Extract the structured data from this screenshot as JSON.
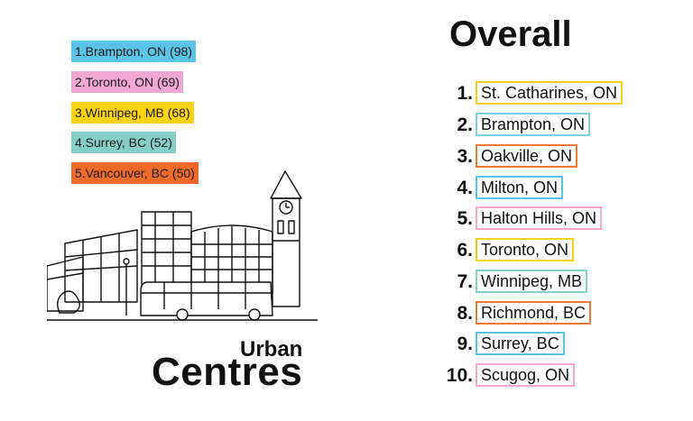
{
  "urban_centres": {
    "title_small": "Urban",
    "title_big": "Centres",
    "items": [
      {
        "label": "1.Brampton, ON (98)",
        "color": "#5bc3e6"
      },
      {
        "label": "2.Toronto, ON (69)",
        "color": "#f0a7d3"
      },
      {
        "label": "3.Winnipeg, MB (68)",
        "color": "#fcd312"
      },
      {
        "label": "4.Surrey, BC (52)",
        "color": "#86cfc6"
      },
      {
        "label": "5.Vancouver, BC (50)",
        "color": "#ee6b2b"
      }
    ]
  },
  "overall": {
    "title": "Overall",
    "items": [
      {
        "rank": "1.",
        "name": "St. Catharines, ON",
        "color": "#f7d117"
      },
      {
        "rank": "2.",
        "name": "Brampton, ON",
        "color": "#7fcfdc"
      },
      {
        "rank": "3.",
        "name": "Oakville, ON",
        "color": "#ee7a3a"
      },
      {
        "rank": "4.",
        "name": "Milton, ON",
        "color": "#5bc3e6"
      },
      {
        "rank": "5.",
        "name": "Halton Hills, ON",
        "color": "#f3a8cf"
      },
      {
        "rank": "6.",
        "name": "Toronto, ON",
        "color": "#f7d117"
      },
      {
        "rank": "7.",
        "name": "Winnipeg, MB",
        "color": "#86cfc6"
      },
      {
        "rank": "8.",
        "name": "Richmond, BC",
        "color": "#ee7a3a"
      },
      {
        "rank": "9.",
        "name": "Surrey, BC",
        "color": "#5bc3e6"
      },
      {
        "rank": "10.",
        "name": "Scugog, ON",
        "color": "#f3a8cf"
      }
    ]
  },
  "illustration": {
    "icon": "city-hall-bus-illustration"
  }
}
